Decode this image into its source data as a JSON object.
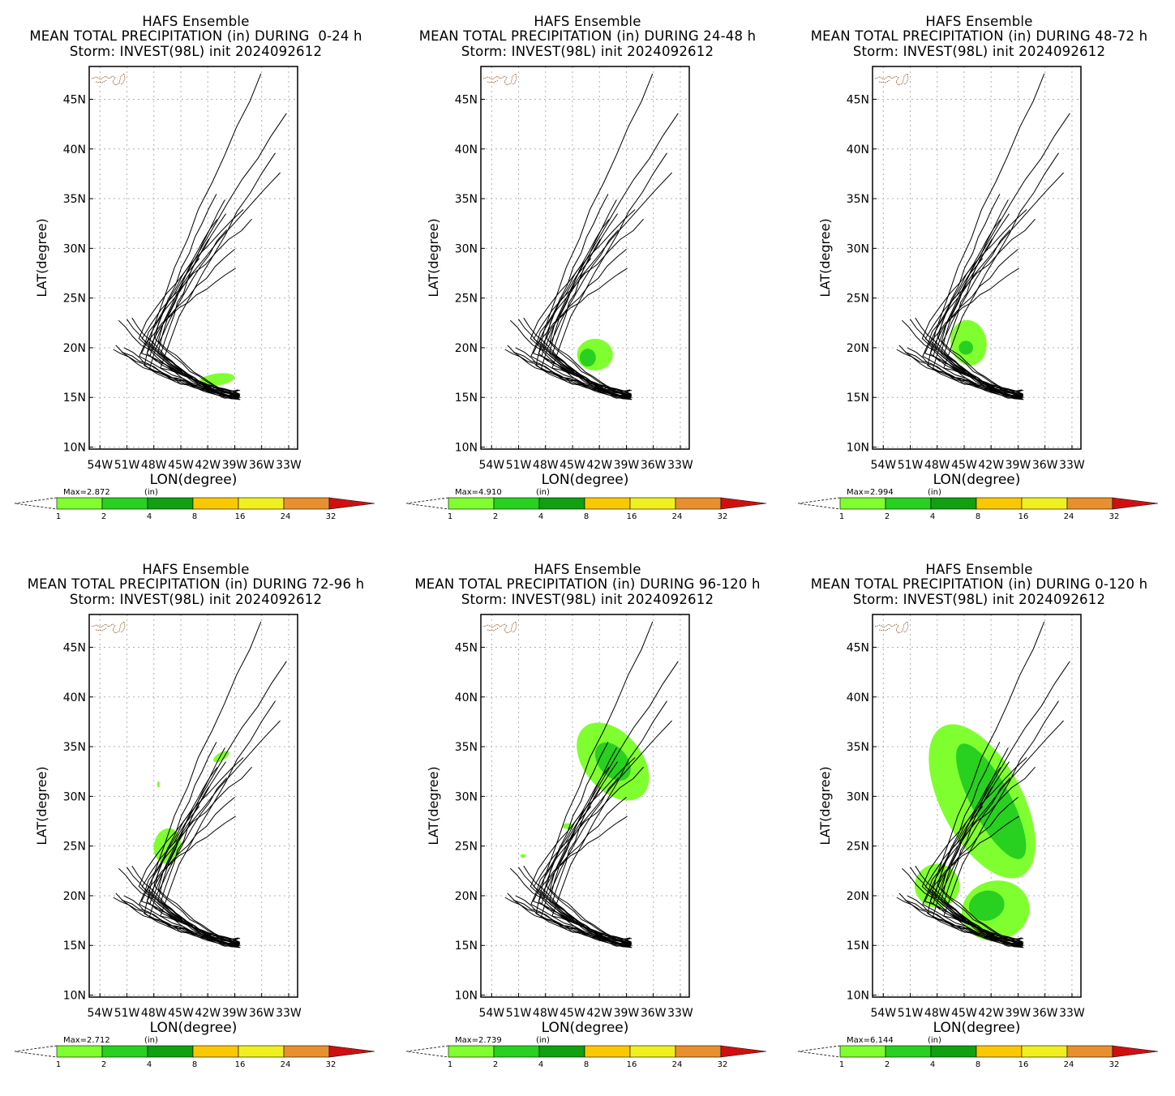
{
  "panels": [
    {
      "line1": "HAFS Ensemble",
      "line2": "MEAN TOTAL PRECIPITATION (in) DURING  0-24 h",
      "line3": "Storm: INVEST(98L) init 2024092612",
      "max": "Max=2.872",
      "period": "0-24"
    },
    {
      "line1": "HAFS Ensemble",
      "line2": "MEAN TOTAL PRECIPITATION (in) DURING 24-48 h",
      "line3": "Storm: INVEST(98L) init 2024092612",
      "max": "Max=4.910",
      "period": "24-48"
    },
    {
      "line1": "HAFS Ensemble",
      "line2": "MEAN TOTAL PRECIPITATION (in) DURING 48-72 h",
      "line3": "Storm: INVEST(98L) init 2024092612",
      "max": "Max=2.994",
      "period": "48-72"
    },
    {
      "line1": "HAFS Ensemble",
      "line2": "MEAN TOTAL PRECIPITATION (in) DURING 72-96 h",
      "line3": "Storm: INVEST(98L) init 2024092612",
      "max": "Max=2.712",
      "period": "72-96"
    },
    {
      "line1": "HAFS Ensemble",
      "line2": "MEAN TOTAL PRECIPITATION (in) DURING 96-120 h",
      "line3": "Storm: INVEST(98L) init 2024092612",
      "max": "Max=2.739",
      "period": "96-120"
    },
    {
      "line1": "HAFS Ensemble",
      "line2": "MEAN TOTAL PRECIPITATION (in) DURING 0-120 h",
      "line3": "Storm: INVEST(98L) init 2024092612",
      "max": "Max=6.144",
      "period": "0-120"
    }
  ],
  "axes": {
    "ylabel": "LAT(degree)",
    "xlabel": "LON(degree)",
    "lat_ticks": [
      "45N",
      "40N",
      "35N",
      "30N",
      "25N",
      "20N",
      "15N",
      "10N"
    ],
    "lon_ticks": [
      "54W",
      "51W",
      "48W",
      "45W",
      "42W",
      "39W",
      "36W",
      "33W"
    ],
    "lat_range": [
      10,
      48
    ],
    "lon_range": [
      -54,
      -33
    ]
  },
  "colorbar": {
    "unit": "(in)",
    "labels": [
      "1",
      "2",
      "4",
      "8",
      "16",
      "24",
      "32"
    ],
    "colors": [
      "#80ff30",
      "#28d020",
      "#10a010",
      "#fac800",
      "#f0f020",
      "#e89030",
      "#d01010"
    ]
  }
}
